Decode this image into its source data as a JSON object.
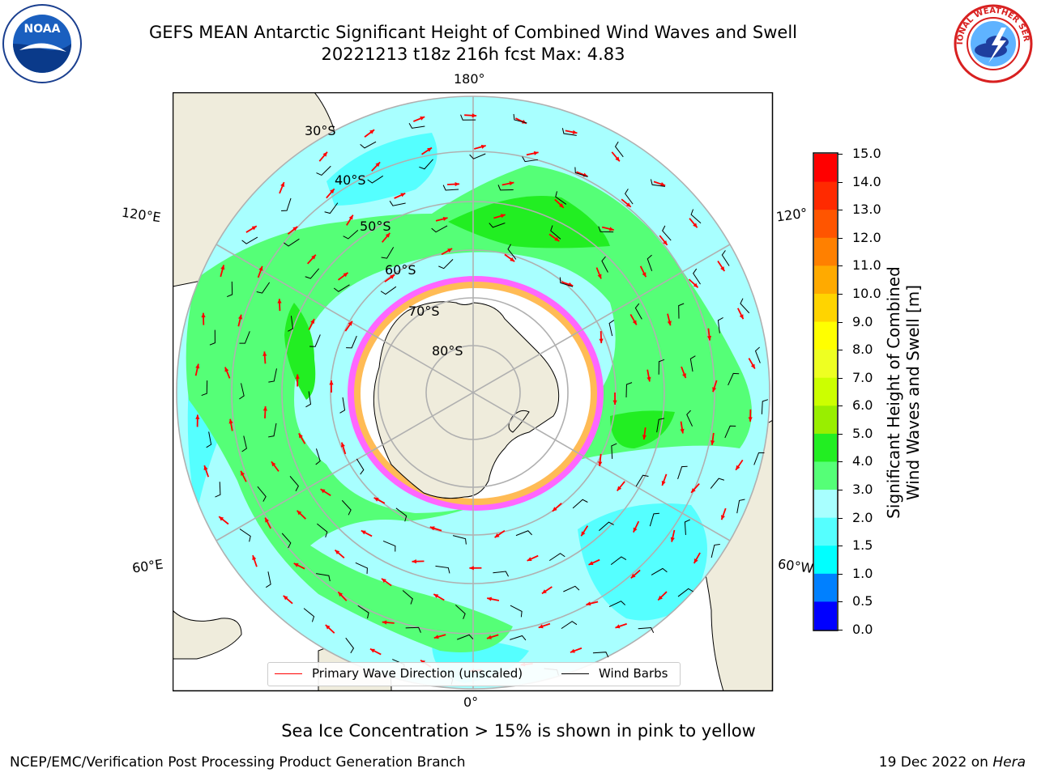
{
  "title": {
    "line1": "GEFS MEAN Antarctic Significant Height of Combined Wind Waves and Swell",
    "line2": "20221213 t18z 216h fcst   Max: 4.83"
  },
  "logos": {
    "noaa_text": "NOAA",
    "nws_text": "NATIONAL WEATHER SERVICE"
  },
  "map": {
    "projection": "south-polar-stereographic",
    "longitude_labels": [
      "180°",
      "120°E",
      "120°",
      "60°E",
      "60°W",
      "0°"
    ],
    "latitude_labels": [
      "30°S",
      "40°S",
      "50°S",
      "60°S",
      "70°S",
      "80°S"
    ],
    "colors": {
      "land": "#efecdc",
      "ocean_lt2": "#a8ffff",
      "ocean_15_2": "#55ffff",
      "ocean_3_4": "#55ff77",
      "ocean_4_5": "#22ee22",
      "sea_ice": "#ff33ff",
      "ice_shelf": "#ffffff",
      "arrows": "#ff0000",
      "barbs": "#000000",
      "grid": "#b0b0b0"
    }
  },
  "legend": {
    "primary": "Primary Wave Direction (unscaled)",
    "barbs": "Wind Barbs"
  },
  "colorbar": {
    "label_line1": "Significant Height of Combined",
    "label_line2": "Wind Waves and Swell [m]",
    "ticks": [
      "15.0",
      "14.0",
      "13.0",
      "12.0",
      "11.0",
      "10.0",
      "9.0",
      "8.0",
      "7.0",
      "6.0",
      "5.0",
      "4.0",
      "3.0",
      "2.0",
      "1.5",
      "1.0",
      "0.5",
      "0.0"
    ],
    "colors": [
      "#ff0000",
      "#ff2a00",
      "#ff5500",
      "#ff8000",
      "#ffaa00",
      "#ffd400",
      "#ffff00",
      "#eeff22",
      "#ccff00",
      "#99ee00",
      "#22ee22",
      "#55ff77",
      "#a8ffff",
      "#55ffff",
      "#00ffff",
      "#0080ff",
      "#0000ff"
    ]
  },
  "footer": {
    "ice_note": "Sea Ice Concentration > 15% is shown in pink to yellow",
    "credit": "NCEP/EMC/Verification Post Processing Product Generation Branch",
    "date": "19 Dec 2022 on",
    "machine": "Hera"
  }
}
